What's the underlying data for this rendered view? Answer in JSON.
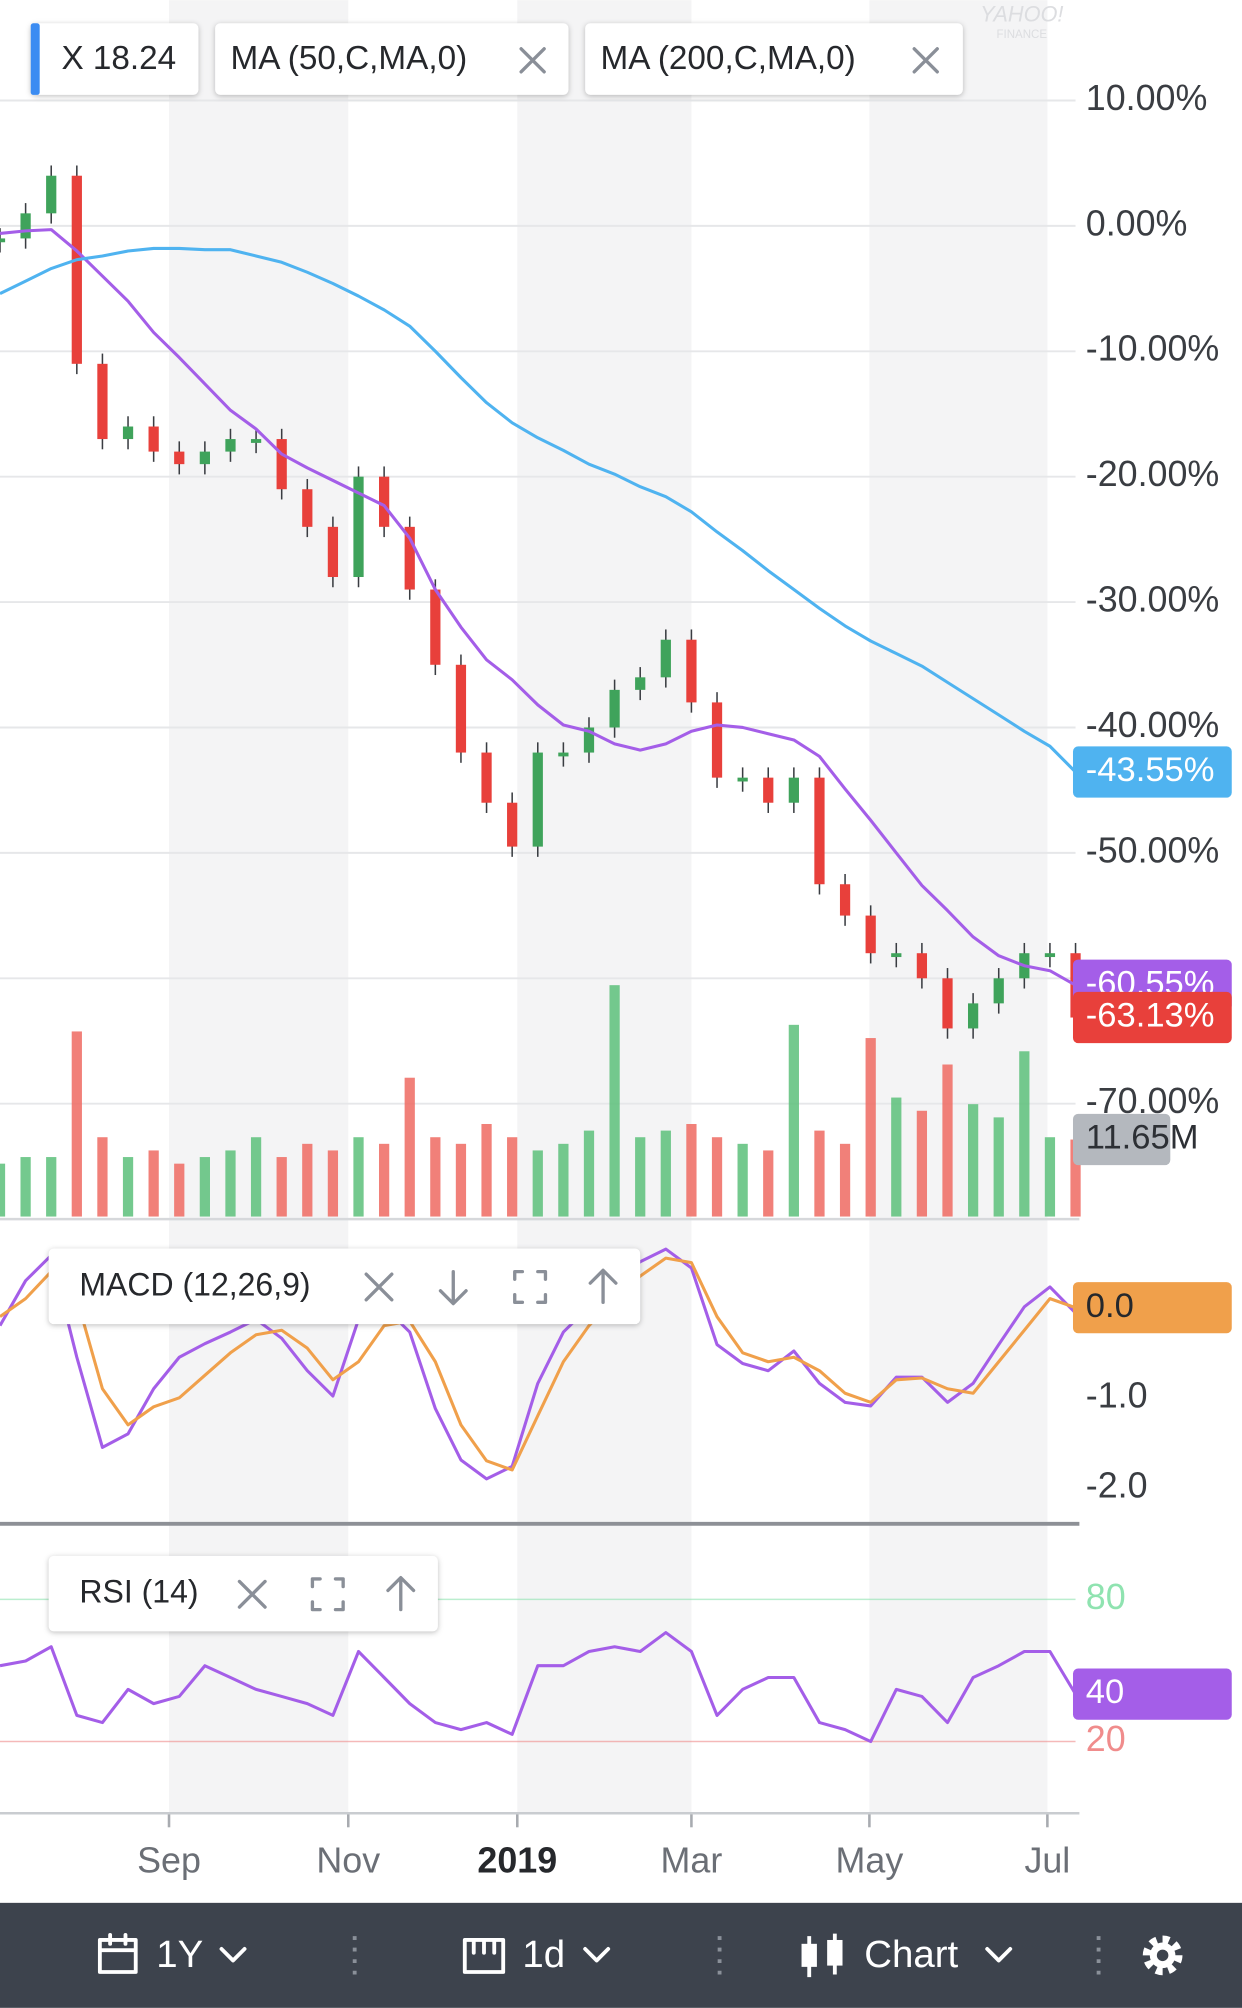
{
  "header": {
    "watermark": [
      "YAHOO!",
      "FINANCE"
    ]
  },
  "chart_data": [
    {
      "type": "candlestick",
      "xlim": [
        0,
        42
      ],
      "ylim": [
        -79,
        18
      ],
      "yticks": [
        {
          "value": 10,
          "label": "10.00%"
        },
        {
          "value": 0,
          "label": "0.00%"
        },
        {
          "value": -10,
          "label": "-10.00%"
        },
        {
          "value": -20,
          "label": "-20.00%"
        },
        {
          "value": -30,
          "label": "-30.00%"
        },
        {
          "value": -40,
          "label": "-40.00%"
        },
        {
          "value": -50,
          "label": "-50.00%"
        },
        {
          "value": -60,
          "label": "-60.00%"
        },
        {
          "value": -70,
          "label": "-70.00%"
        }
      ],
      "grid": true,
      "y2lim": [
        0,
        184
      ],
      "series": [
        {
          "name": "X 18.24",
          "color_up": "#3fa35b",
          "color_down": "#e8403b",
          "values": [
            -1,
            1,
            4,
            -11,
            -17,
            -16,
            -18,
            -19,
            -18,
            -17,
            -17,
            -21,
            -24,
            -28,
            -20,
            -24,
            -29,
            -35,
            -42,
            -46,
            -49.5,
            -42,
            -42,
            -40,
            -37,
            -36,
            -33,
            -38,
            -44,
            -44,
            -46,
            -44,
            -52.5,
            -55,
            -58,
            -58,
            -60,
            -64,
            -62,
            -60,
            -58,
            -58,
            -63.13
          ],
          "last_label": "-63.13%"
        },
        {
          "name": "MA (50,C,MA,0)",
          "color": "#a45ee8",
          "values": [
            -0.6,
            -0.4,
            -0.3,
            -2,
            -4,
            -6,
            -8.5,
            -10.5,
            -12.6,
            -14.7,
            -16.2,
            -18.2,
            -19.3,
            -20.3,
            -21.3,
            -22.3,
            -24.9,
            -29,
            -32,
            -34.6,
            -36.2,
            -38.2,
            -39.8,
            -40.3,
            -41.3,
            -41.8,
            -41.3,
            -40.3,
            -39.8,
            -40,
            -40.5,
            -41,
            -42.3,
            -44.9,
            -47.4,
            -50,
            -52.6,
            -54.6,
            -56.7,
            -58.2,
            -59,
            -59.4,
            -60.55
          ],
          "last_label": "-60.55%"
        },
        {
          "name": "MA (200,C,MA,0)",
          "color": "#4fb3f0",
          "values": [
            -5.4,
            -4.4,
            -3.4,
            -2.7,
            -2.4,
            -2,
            -1.8,
            -1.8,
            -1.9,
            -1.9,
            -2.4,
            -2.9,
            -3.7,
            -4.6,
            -5.6,
            -6.7,
            -8,
            -10,
            -12.1,
            -14.1,
            -15.7,
            -16.9,
            -17.9,
            -19,
            -19.8,
            -20.8,
            -21.6,
            -22.8,
            -24.4,
            -25.9,
            -27.5,
            -29,
            -30.5,
            -31.9,
            -33.1,
            -34.1,
            -35.1,
            -36.4,
            -37.7,
            -39,
            -40.3,
            -41.5,
            -43.55
          ],
          "last_label": "-43.55%"
        },
        {
          "axis": "y2",
          "color_up": "#5cbf7a",
          "color_down": "#ee6a62",
          "label_color": "#b4b8be",
          "values": [
            8,
            9,
            9,
            28,
            12,
            9,
            10,
            8,
            9,
            10,
            12,
            9,
            11,
            10,
            12,
            11,
            21,
            12,
            11,
            14,
            12,
            10,
            11,
            13,
            35,
            12,
            13,
            14,
            12,
            11,
            10,
            29,
            13,
            11,
            27,
            18,
            16,
            23,
            17,
            15,
            25,
            12,
            11.65
          ],
          "last_label": "11.65M"
        }
      ]
    },
    {
      "type": "line",
      "title": "MACD (12,26,9)",
      "xlim": [
        0,
        42
      ],
      "ylim": [
        -2.37,
        0.94
      ],
      "yticks": [
        {
          "value": -1,
          "label": "-1.0"
        },
        {
          "value": -2,
          "label": "-2.0"
        }
      ],
      "series": [
        {
          "color": "#a45ee8",
          "values": [
            -0.2,
            0.3,
            0.58,
            -0.55,
            -1.55,
            -1.4,
            -0.9,
            -0.55,
            -0.4,
            -0.27,
            -0.13,
            -0.34,
            -0.7,
            -0.98,
            -0.13,
            0.01,
            -0.27,
            -1.12,
            -1.69,
            -1.9,
            -1.76,
            -0.84,
            -0.27,
            0.01,
            0.3,
            0.51,
            0.65,
            0.44,
            -0.41,
            -0.62,
            -0.7,
            -0.48,
            -0.84,
            -1.05,
            -1.09,
            -0.77,
            -0.77,
            -1.05,
            -0.84,
            -0.41,
            0.01,
            0.23,
            -0.06
          ]
        },
        {
          "color": "#f0a04b",
          "values": [
            -0.1,
            0.1,
            0.4,
            0.1,
            -0.9,
            -1.3,
            -1.1,
            -1.0,
            -0.75,
            -0.5,
            -0.3,
            -0.25,
            -0.45,
            -0.8,
            -0.6,
            -0.2,
            -0.15,
            -0.6,
            -1.3,
            -1.7,
            -1.8,
            -1.2,
            -0.6,
            -0.2,
            0.1,
            0.35,
            0.55,
            0.5,
            -0.1,
            -0.5,
            -0.6,
            -0.55,
            -0.7,
            -0.95,
            -1.05,
            -0.8,
            -0.78,
            -0.9,
            -0.95,
            -0.6,
            -0.25,
            0.1,
            0.0
          ],
          "last_label": "0.0"
        }
      ]
    },
    {
      "type": "line",
      "title": "RSI (14)",
      "xlim": [
        0,
        42
      ],
      "ylim": [
        -10.3,
        110.8
      ],
      "yticks": [
        80,
        20
      ],
      "tick_colors": [
        "#8fe3b0",
        "#f08c8c"
      ],
      "xticks": [
        {
          "value": 6.6,
          "label": "Sep"
        },
        {
          "value": 13.6,
          "label": "Nov"
        },
        {
          "value": 20.2,
          "label": "2019"
        },
        {
          "value": 27,
          "label": "Mar"
        },
        {
          "value": 33.95,
          "label": "May"
        },
        {
          "value": 40.9,
          "label": "Jul"
        }
      ],
      "series": [
        {
          "color": "#a45ee8",
          "values": [
            52,
            54,
            60,
            31,
            28,
            42,
            36,
            39,
            52,
            47,
            42,
            39,
            36,
            31,
            58,
            47,
            36,
            28,
            25,
            28,
            23,
            52,
            52,
            58,
            60,
            58,
            66,
            58,
            31,
            42,
            47,
            47,
            28,
            25,
            20,
            42,
            39,
            28,
            47,
            52,
            58,
            58,
            40
          ],
          "last_label": "40"
        }
      ]
    }
  ],
  "toolbar": {
    "items": [
      "1Y",
      "1d",
      "Chart"
    ]
  }
}
